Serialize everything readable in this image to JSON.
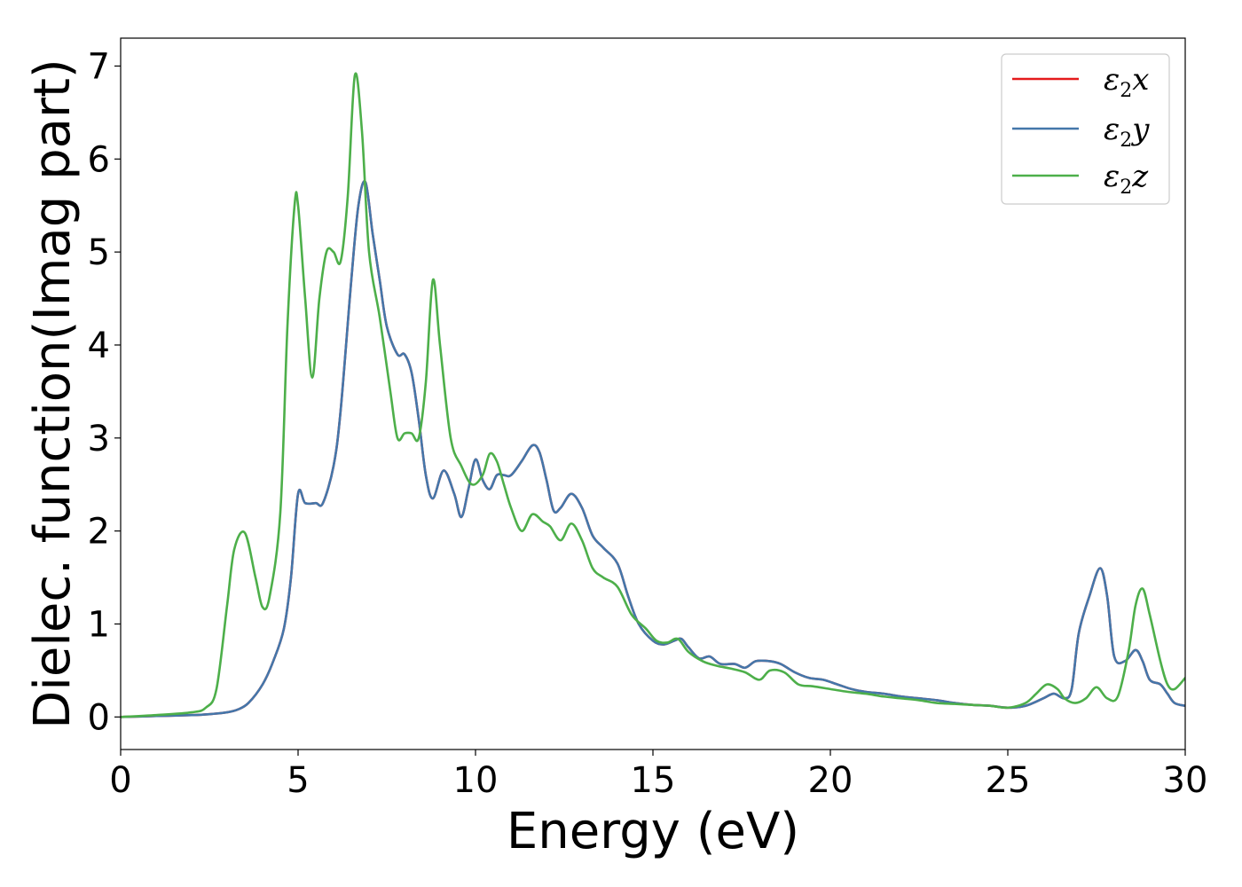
{
  "chart_data": {
    "type": "line",
    "xlabel": "Energy (eV)",
    "ylabel": "Dielec. function(Imag part)",
    "xlim": [
      0,
      30
    ],
    "ylim": [
      -0.35,
      7.3
    ],
    "xticks": [
      0,
      5,
      10,
      15,
      20,
      25,
      30
    ],
    "yticks": [
      0,
      1,
      2,
      3,
      4,
      5,
      6,
      7
    ],
    "grid": false,
    "legend": "top-right",
    "series": [
      {
        "name": "ε2x",
        "legend_base": "ε",
        "legend_sub": "2",
        "legend_var": "x",
        "color": "#e41a1c",
        "x": [
          0,
          1,
          2,
          2.5,
          3,
          3.3,
          3.6,
          4,
          4.3,
          4.6,
          4.8,
          5.0,
          5.2,
          5.5,
          5.7,
          6.0,
          6.2,
          6.5,
          6.7,
          6.9,
          7.1,
          7.3,
          7.5,
          7.8,
          8.0,
          8.2,
          8.4,
          8.6,
          8.8,
          9.1,
          9.4,
          9.6,
          9.8,
          10.0,
          10.2,
          10.4,
          10.6,
          10.8,
          11.0,
          11.3,
          11.6,
          11.8,
          12.0,
          12.2,
          12.4,
          12.7,
          13.0,
          13.3,
          13.6,
          14.0,
          14.3,
          14.6,
          15.0,
          15.3,
          15.6,
          15.8,
          16.0,
          16.3,
          16.6,
          16.9,
          17.3,
          17.6,
          17.9,
          18.3,
          18.6,
          19.0,
          19.4,
          19.8,
          20.2,
          20.6,
          21.0,
          21.5,
          22.0,
          22.5,
          23.0,
          23.5,
          24.0,
          24.5,
          25.0,
          25.5,
          26.0,
          26.3,
          26.6,
          26.8,
          27.0,
          27.3,
          27.6,
          27.8,
          28.0,
          28.3,
          28.6,
          28.8,
          29.0,
          29.3,
          29.5,
          29.7,
          30.0
        ],
        "y": [
          0.0,
          0.01,
          0.02,
          0.03,
          0.05,
          0.08,
          0.15,
          0.35,
          0.6,
          0.95,
          1.5,
          2.4,
          2.3,
          2.3,
          2.3,
          2.7,
          3.3,
          4.7,
          5.5,
          5.75,
          5.2,
          4.7,
          4.2,
          3.9,
          3.9,
          3.7,
          3.2,
          2.6,
          2.35,
          2.65,
          2.4,
          2.15,
          2.45,
          2.77,
          2.55,
          2.45,
          2.6,
          2.6,
          2.6,
          2.75,
          2.92,
          2.85,
          2.55,
          2.22,
          2.25,
          2.4,
          2.25,
          1.95,
          1.82,
          1.65,
          1.3,
          1.0,
          0.82,
          0.78,
          0.82,
          0.84,
          0.75,
          0.63,
          0.65,
          0.57,
          0.57,
          0.53,
          0.6,
          0.6,
          0.57,
          0.48,
          0.42,
          0.4,
          0.35,
          0.3,
          0.27,
          0.25,
          0.22,
          0.2,
          0.18,
          0.15,
          0.13,
          0.12,
          0.1,
          0.12,
          0.2,
          0.25,
          0.2,
          0.3,
          0.9,
          1.3,
          1.6,
          1.3,
          0.65,
          0.6,
          0.72,
          0.6,
          0.4,
          0.35,
          0.25,
          0.15,
          0.12
        ]
      },
      {
        "name": "ε2y",
        "legend_base": "ε",
        "legend_sub": "2",
        "legend_var": "y",
        "color": "#4477aa",
        "x": [
          0,
          1,
          2,
          2.5,
          3,
          3.3,
          3.6,
          4,
          4.3,
          4.6,
          4.8,
          5.0,
          5.2,
          5.5,
          5.7,
          6.0,
          6.2,
          6.5,
          6.7,
          6.9,
          7.1,
          7.3,
          7.5,
          7.8,
          8.0,
          8.2,
          8.4,
          8.6,
          8.8,
          9.1,
          9.4,
          9.6,
          9.8,
          10.0,
          10.2,
          10.4,
          10.6,
          10.8,
          11.0,
          11.3,
          11.6,
          11.8,
          12.0,
          12.2,
          12.4,
          12.7,
          13.0,
          13.3,
          13.6,
          14.0,
          14.3,
          14.6,
          15.0,
          15.3,
          15.6,
          15.8,
          16.0,
          16.3,
          16.6,
          16.9,
          17.3,
          17.6,
          17.9,
          18.3,
          18.6,
          19.0,
          19.4,
          19.8,
          20.2,
          20.6,
          21.0,
          21.5,
          22.0,
          22.5,
          23.0,
          23.5,
          24.0,
          24.5,
          25.0,
          25.5,
          26.0,
          26.3,
          26.6,
          26.8,
          27.0,
          27.3,
          27.6,
          27.8,
          28.0,
          28.3,
          28.6,
          28.8,
          29.0,
          29.3,
          29.5,
          29.7,
          30.0
        ],
        "y": [
          0.0,
          0.01,
          0.02,
          0.03,
          0.05,
          0.08,
          0.15,
          0.35,
          0.6,
          0.95,
          1.5,
          2.4,
          2.3,
          2.3,
          2.3,
          2.7,
          3.3,
          4.7,
          5.5,
          5.75,
          5.2,
          4.7,
          4.2,
          3.9,
          3.9,
          3.7,
          3.2,
          2.6,
          2.35,
          2.65,
          2.4,
          2.15,
          2.45,
          2.77,
          2.55,
          2.45,
          2.6,
          2.6,
          2.6,
          2.75,
          2.92,
          2.85,
          2.55,
          2.22,
          2.25,
          2.4,
          2.25,
          1.95,
          1.82,
          1.65,
          1.3,
          1.0,
          0.82,
          0.78,
          0.82,
          0.84,
          0.75,
          0.63,
          0.65,
          0.57,
          0.57,
          0.53,
          0.6,
          0.6,
          0.57,
          0.48,
          0.42,
          0.4,
          0.35,
          0.3,
          0.27,
          0.25,
          0.22,
          0.2,
          0.18,
          0.15,
          0.13,
          0.12,
          0.1,
          0.12,
          0.2,
          0.25,
          0.2,
          0.3,
          0.9,
          1.3,
          1.6,
          1.3,
          0.65,
          0.6,
          0.72,
          0.6,
          0.4,
          0.35,
          0.25,
          0.15,
          0.12
        ]
      },
      {
        "name": "ε2z",
        "legend_base": "ε",
        "legend_sub": "2",
        "legend_var": "z",
        "color": "#4daf4a",
        "x": [
          0,
          1,
          2,
          2.4,
          2.7,
          3.0,
          3.2,
          3.5,
          3.8,
          4.0,
          4.2,
          4.5,
          4.7,
          4.9,
          5.0,
          5.2,
          5.4,
          5.6,
          5.8,
          6.0,
          6.2,
          6.4,
          6.6,
          6.8,
          7.0,
          7.3,
          7.6,
          7.8,
          8.0,
          8.2,
          8.4,
          8.6,
          8.8,
          9.0,
          9.3,
          9.6,
          9.9,
          10.2,
          10.4,
          10.6,
          10.8,
          11.0,
          11.3,
          11.6,
          11.9,
          12.1,
          12.4,
          12.7,
          13.0,
          13.3,
          13.6,
          14.0,
          14.4,
          14.8,
          15.1,
          15.4,
          15.7,
          16.0,
          16.4,
          16.8,
          17.2,
          17.6,
          18.0,
          18.3,
          18.7,
          19.1,
          19.5,
          20.0,
          20.5,
          21.0,
          21.5,
          22.0,
          22.5,
          23.0,
          23.5,
          24.0,
          24.5,
          25.0,
          25.5,
          25.8,
          26.1,
          26.4,
          26.6,
          26.9,
          27.2,
          27.5,
          27.8,
          28.1,
          28.4,
          28.6,
          28.8,
          29.0,
          29.3,
          29.5,
          29.7,
          30.0
        ],
        "y": [
          0.0,
          0.02,
          0.05,
          0.1,
          0.3,
          1.2,
          1.8,
          1.98,
          1.5,
          1.18,
          1.3,
          2.2,
          4.2,
          5.5,
          5.5,
          4.5,
          3.65,
          4.5,
          5.0,
          5.0,
          4.9,
          5.6,
          6.9,
          6.3,
          5.0,
          4.3,
          3.5,
          3.0,
          3.05,
          3.05,
          3.0,
          3.6,
          4.7,
          4.0,
          3.0,
          2.7,
          2.5,
          2.6,
          2.83,
          2.75,
          2.5,
          2.25,
          2.0,
          2.18,
          2.1,
          2.05,
          1.9,
          2.08,
          1.9,
          1.6,
          1.5,
          1.4,
          1.1,
          0.95,
          0.82,
          0.8,
          0.84,
          0.7,
          0.6,
          0.55,
          0.52,
          0.48,
          0.4,
          0.5,
          0.48,
          0.35,
          0.33,
          0.3,
          0.27,
          0.25,
          0.22,
          0.2,
          0.18,
          0.15,
          0.14,
          0.13,
          0.12,
          0.1,
          0.15,
          0.25,
          0.35,
          0.3,
          0.2,
          0.15,
          0.2,
          0.32,
          0.2,
          0.22,
          0.7,
          1.2,
          1.38,
          1.1,
          0.6,
          0.35,
          0.3,
          0.42
        ]
      }
    ]
  }
}
